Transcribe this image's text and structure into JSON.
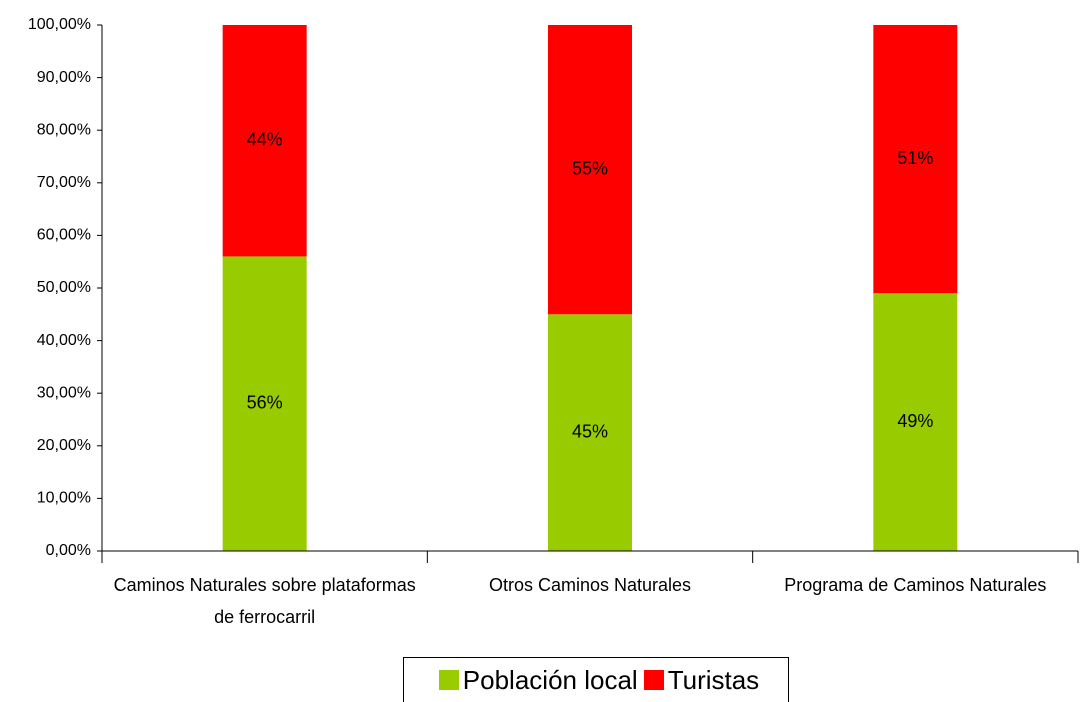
{
  "chart_data": {
    "type": "stacked_bar",
    "categories": [
      "Caminos Naturales sobre plataformas de ferrocarril",
      "Otros Caminos Naturales",
      "Programa de Caminos Naturales"
    ],
    "series": [
      {
        "name": "Población local",
        "color": "#99cc00",
        "values": [
          56,
          45,
          49
        ],
        "value_labels": [
          "56%",
          "45%",
          "49%"
        ]
      },
      {
        "name": "Turistas",
        "color": "#ff0000",
        "values": [
          44,
          55,
          51
        ],
        "value_labels": [
          "44%",
          "55%",
          "51%"
        ]
      }
    ],
    "ylim": [
      0,
      100
    ],
    "yticks": [
      {
        "value": 0,
        "label": "0,00%"
      },
      {
        "value": 10,
        "label": "10,00%"
      },
      {
        "value": 20,
        "label": "20,00%"
      },
      {
        "value": 30,
        "label": "30,00%"
      },
      {
        "value": 40,
        "label": "40,00%"
      },
      {
        "value": 50,
        "label": "50,00%"
      },
      {
        "value": 60,
        "label": "60,00%"
      },
      {
        "value": 70,
        "label": "70,00%"
      },
      {
        "value": 80,
        "label": "80,00%"
      },
      {
        "value": 90,
        "label": "90,00%"
      },
      {
        "value": 100,
        "label": "100,00%"
      }
    ],
    "legend": "bottom"
  }
}
